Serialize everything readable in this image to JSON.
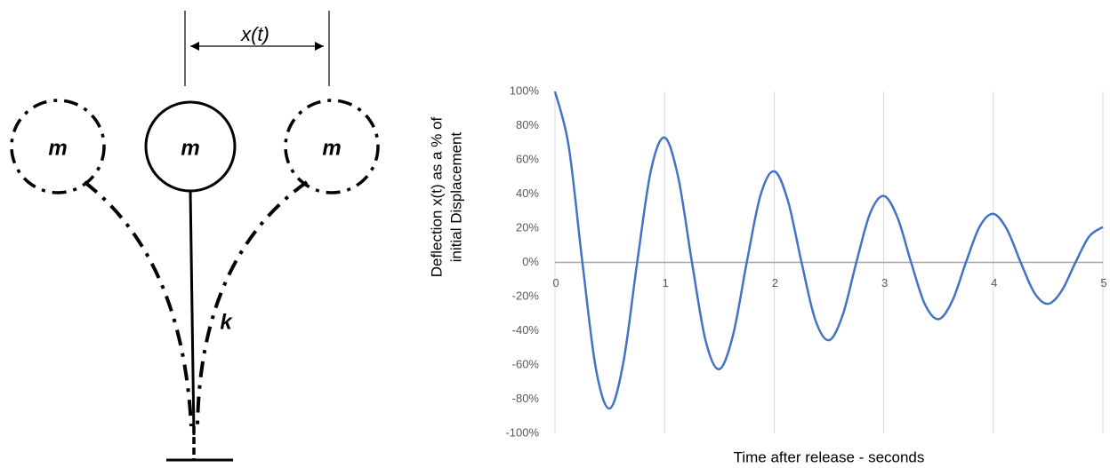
{
  "diagram": {
    "dimension_label": "x(t)",
    "masses": [
      "m",
      "m",
      "m"
    ],
    "spring_label": "k"
  },
  "chart_data": {
    "type": "line",
    "xlabel": "Time after release - seconds",
    "ylabel": [
      "Deflection x(t) as a % of",
      "initial Displacement"
    ],
    "x": [
      0,
      0.125,
      0.25,
      0.375,
      0.5,
      0.625,
      0.75,
      0.875,
      1,
      1.125,
      1.25,
      1.375,
      1.5,
      1.625,
      1.75,
      1.875,
      2,
      2.125,
      2.25,
      2.375,
      2.5,
      2.625,
      2.75,
      2.875,
      3,
      3.125,
      3.25,
      3.375,
      3.5,
      3.625,
      3.75,
      3.875,
      4,
      4.125,
      4.25,
      4.375,
      4.5,
      4.625,
      4.75,
      4.875,
      5
    ],
    "series": [
      {
        "color": "#4472c4",
        "values": [
          100,
          68.0,
          0,
          -62.8,
          -85.4,
          -58.1,
          0,
          53.7,
          73.0,
          49.6,
          0,
          -45.9,
          -62.4,
          -42.4,
          0,
          39.2,
          53.3,
          36.2,
          0,
          -33.5,
          -45.5,
          -30.9,
          0,
          28.6,
          38.9,
          26.4,
          0,
          -24.4,
          -33.2,
          -22.6,
          0,
          20.9,
          28.4,
          19.3,
          0,
          -17.8,
          -24.2,
          -16.5,
          0,
          15.2,
          20.7
        ]
      }
    ],
    "xlim": [
      0,
      5
    ],
    "xticks": [
      0,
      1,
      2,
      3,
      4,
      5
    ],
    "ylim": [
      -100,
      100
    ],
    "yticks": [
      {
        "value": -100,
        "label": "-100%"
      },
      {
        "value": -80,
        "label": "-80%"
      },
      {
        "value": -60,
        "label": "-60%"
      },
      {
        "value": -40,
        "label": "-40%"
      },
      {
        "value": -20,
        "label": "-20%"
      },
      {
        "value": 0,
        "label": "0%"
      },
      {
        "value": 20,
        "label": "20%"
      },
      {
        "value": 40,
        "label": "40%"
      },
      {
        "value": 60,
        "label": "60%"
      },
      {
        "value": 80,
        "label": "80%"
      },
      {
        "value": 100,
        "label": "100%"
      }
    ],
    "grid": true
  }
}
